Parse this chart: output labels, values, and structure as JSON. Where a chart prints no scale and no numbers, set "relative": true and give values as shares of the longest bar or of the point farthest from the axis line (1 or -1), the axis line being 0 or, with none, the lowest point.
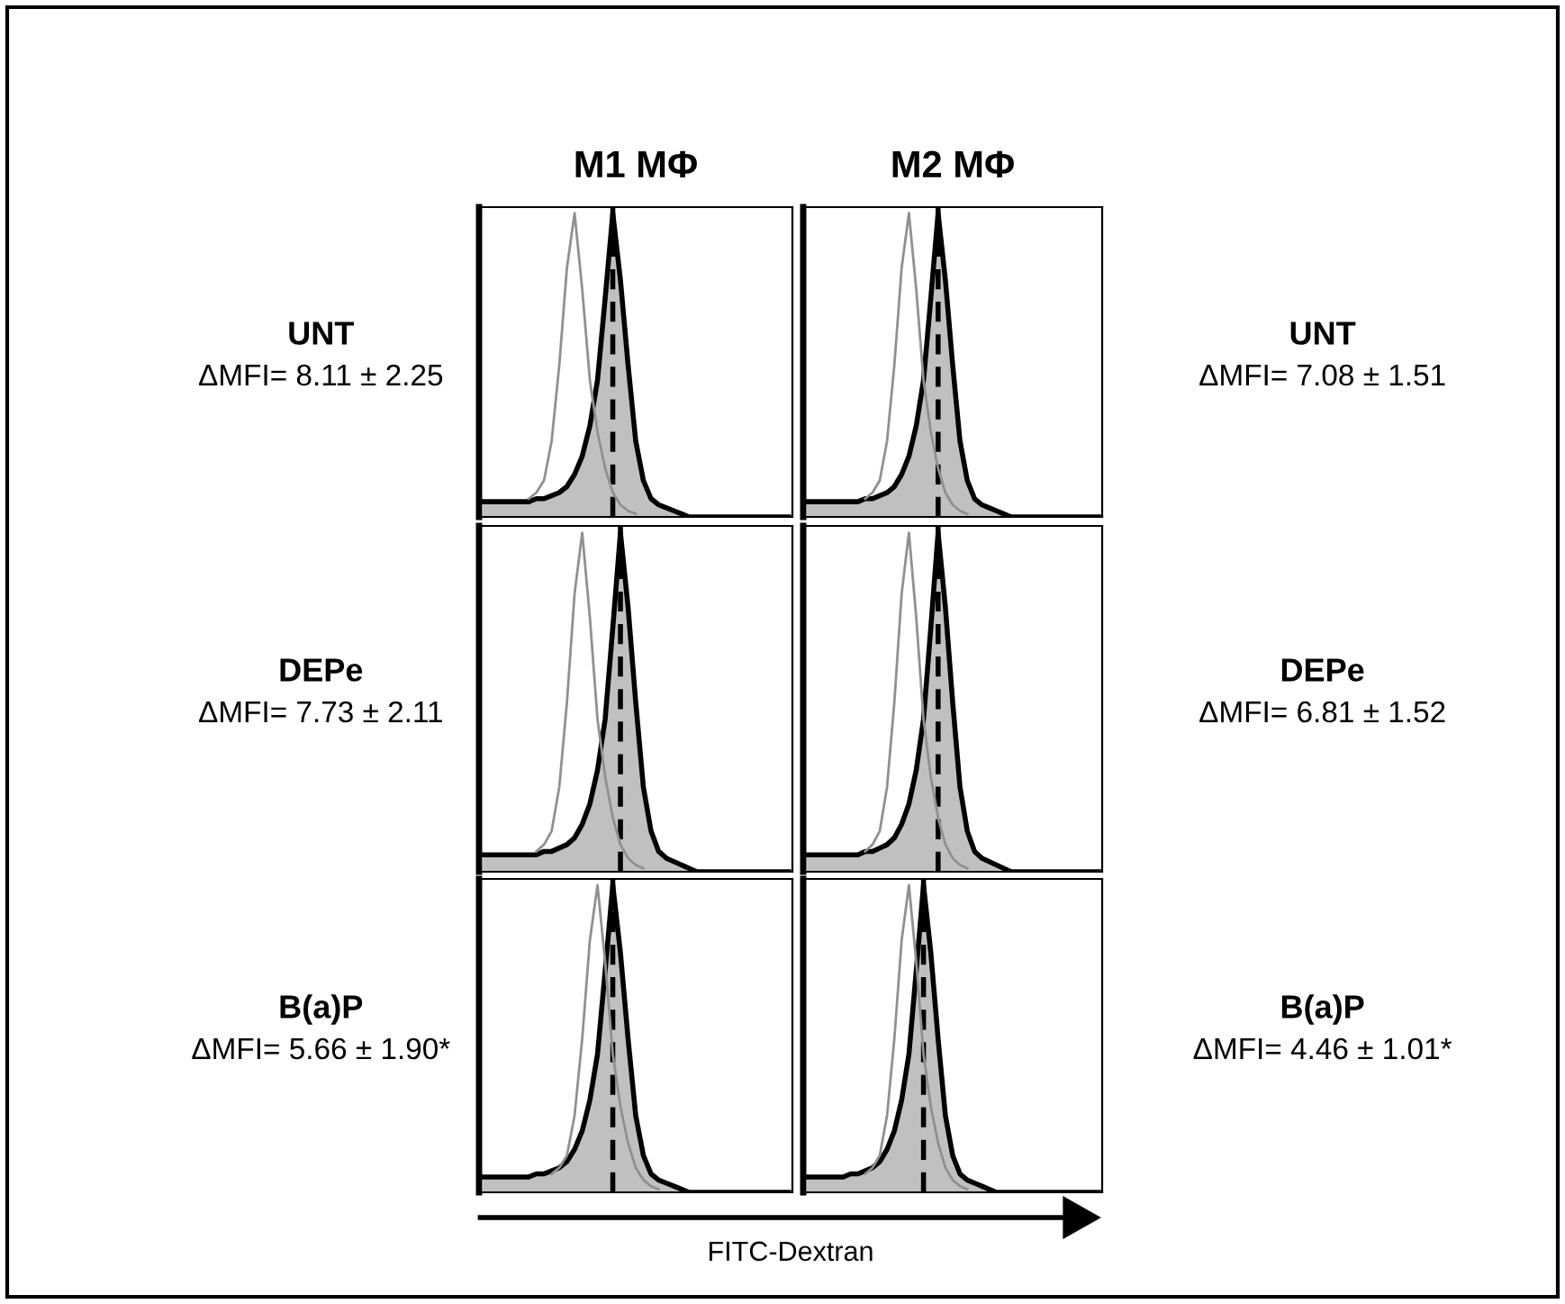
{
  "chart_data": [
    {
      "type": "area",
      "title": "M1 MΦ",
      "relative": true,
      "annotations": [
        "UNT",
        "ΔMFI= 8.11 ± 2.25"
      ],
      "categories": [
        null,
        null,
        null,
        null,
        null,
        null,
        null,
        null,
        null,
        null,
        null,
        null,
        null,
        null,
        null,
        null,
        null,
        null,
        null,
        null,
        null,
        null,
        null,
        null,
        null,
        null,
        null,
        null,
        null,
        null,
        null,
        null,
        null,
        null,
        null,
        null,
        null,
        null,
        null,
        null,
        null
      ],
      "series": [
        {
          "color": "#c0c0c0",
          "values": [
            0.05,
            0.05,
            0.05,
            0.05,
            0.05,
            0.05,
            0.05,
            0.06,
            0.06,
            0.07,
            0.08,
            0.1,
            0.14,
            0.2,
            0.3,
            0.45,
            0.72,
            1,
            0.78,
            0.5,
            0.25,
            0.12,
            0.06,
            0.04,
            0.03,
            0.02,
            0.01,
            0,
            0,
            0,
            0,
            0,
            0,
            0,
            0,
            0,
            0,
            0,
            0,
            0,
            0
          ]
        },
        {
          "type": "line",
          "color": "#909090",
          "values": [
            null,
            null,
            null,
            null,
            null,
            null,
            0.06,
            0.08,
            0.12,
            0.25,
            0.5,
            0.82,
            1,
            0.75,
            0.45,
            0.28,
            0.16,
            0.08,
            0.04,
            0.02,
            0.01,
            null,
            null,
            null,
            null,
            null,
            null,
            null,
            null,
            null,
            null,
            null,
            null,
            null,
            null,
            null,
            null,
            null,
            null,
            null,
            null
          ]
        }
      ]
    },
    {
      "type": "area",
      "title": "M2 MΦ",
      "relative": true,
      "annotations": [
        "UNT",
        "ΔMFI= 7.08 ± 1.51"
      ],
      "categories": [
        null,
        null,
        null,
        null,
        null,
        null,
        null,
        null,
        null,
        null,
        null,
        null,
        null,
        null,
        null,
        null,
        null,
        null,
        null,
        null,
        null,
        null,
        null,
        null,
        null,
        null,
        null,
        null,
        null,
        null,
        null,
        null,
        null,
        null,
        null,
        null,
        null,
        null,
        null,
        null,
        null
      ],
      "series": [
        {
          "color": "#c0c0c0",
          "values": [
            0.05,
            0.05,
            0.05,
            0.05,
            0.05,
            0.05,
            0.05,
            0.05,
            0.06,
            0.06,
            0.07,
            0.08,
            0.1,
            0.14,
            0.2,
            0.3,
            0.45,
            0.72,
            1,
            0.78,
            0.5,
            0.25,
            0.12,
            0.06,
            0.04,
            0.03,
            0.02,
            0.01,
            0,
            0,
            0,
            0,
            0,
            0,
            0,
            0,
            0,
            0,
            0,
            0,
            0
          ]
        },
        {
          "type": "line",
          "color": "#909090",
          "values": [
            null,
            null,
            null,
            null,
            null,
            null,
            null,
            null,
            0.06,
            0.08,
            0.12,
            0.25,
            0.5,
            0.82,
            1,
            0.75,
            0.45,
            0.28,
            0.16,
            0.08,
            0.04,
            0.02,
            0.01,
            null,
            null,
            null,
            null,
            null,
            null,
            null,
            null,
            null,
            null,
            null,
            null,
            null,
            null,
            null,
            null,
            null,
            null
          ]
        }
      ]
    },
    {
      "type": "area",
      "relative": true,
      "annotations": [
        "DEPe",
        "ΔMFI= 7.73 ± 2.11"
      ],
      "categories": [
        null,
        null,
        null,
        null,
        null,
        null,
        null,
        null,
        null,
        null,
        null,
        null,
        null,
        null,
        null,
        null,
        null,
        null,
        null,
        null,
        null,
        null,
        null,
        null,
        null,
        null,
        null,
        null,
        null,
        null,
        null,
        null,
        null,
        null,
        null,
        null,
        null,
        null,
        null,
        null,
        null
      ],
      "series": [
        {
          "color": "#c0c0c0",
          "values": [
            0.05,
            0.05,
            0.05,
            0.05,
            0.05,
            0.05,
            0.05,
            0.05,
            0.06,
            0.06,
            0.07,
            0.08,
            0.1,
            0.14,
            0.2,
            0.3,
            0.45,
            0.72,
            1,
            0.78,
            0.5,
            0.25,
            0.12,
            0.06,
            0.04,
            0.03,
            0.02,
            0.01,
            0,
            0,
            0,
            0,
            0,
            0,
            0,
            0,
            0,
            0,
            0,
            0,
            0
          ]
        },
        {
          "type": "line",
          "color": "#909090",
          "values": [
            null,
            null,
            null,
            null,
            null,
            null,
            null,
            0.06,
            0.08,
            0.12,
            0.25,
            0.5,
            0.82,
            1,
            0.75,
            0.45,
            0.28,
            0.16,
            0.08,
            0.04,
            0.02,
            0.01,
            null,
            null,
            null,
            null,
            null,
            null,
            null,
            null,
            null,
            null,
            null,
            null,
            null,
            null,
            null,
            null,
            null,
            null,
            null
          ]
        }
      ]
    },
    {
      "type": "area",
      "relative": true,
      "annotations": [
        "DEPe",
        "ΔMFI= 6.81 ± 1.52"
      ],
      "categories": [
        null,
        null,
        null,
        null,
        null,
        null,
        null,
        null,
        null,
        null,
        null,
        null,
        null,
        null,
        null,
        null,
        null,
        null,
        null,
        null,
        null,
        null,
        null,
        null,
        null,
        null,
        null,
        null,
        null,
        null,
        null,
        null,
        null,
        null,
        null,
        null,
        null,
        null,
        null,
        null,
        null
      ],
      "series": [
        {
          "color": "#c0c0c0",
          "values": [
            0.05,
            0.05,
            0.05,
            0.05,
            0.05,
            0.05,
            0.05,
            0.05,
            0.06,
            0.06,
            0.07,
            0.08,
            0.1,
            0.14,
            0.2,
            0.3,
            0.45,
            0.72,
            1,
            0.78,
            0.5,
            0.25,
            0.12,
            0.06,
            0.04,
            0.03,
            0.02,
            0.01,
            0,
            0,
            0,
            0,
            0,
            0,
            0,
            0,
            0,
            0,
            0,
            0,
            0
          ]
        },
        {
          "type": "line",
          "color": "#909090",
          "values": [
            null,
            null,
            null,
            null,
            null,
            null,
            null,
            null,
            0.06,
            0.08,
            0.12,
            0.25,
            0.5,
            0.82,
            1,
            0.75,
            0.45,
            0.28,
            0.16,
            0.08,
            0.04,
            0.02,
            0.01,
            null,
            null,
            null,
            null,
            null,
            null,
            null,
            null,
            null,
            null,
            null,
            null,
            null,
            null,
            null,
            null,
            null,
            null
          ]
        }
      ]
    },
    {
      "type": "area",
      "relative": true,
      "annotations": [
        "B(a)P",
        "ΔMFI= 5.66 ± 1.90*",
        "FITC-Dextran"
      ],
      "categories": [
        null,
        null,
        null,
        null,
        null,
        null,
        null,
        null,
        null,
        null,
        null,
        null,
        null,
        null,
        null,
        null,
        null,
        null,
        null,
        null,
        null,
        null,
        null,
        null,
        null,
        null,
        null,
        null,
        null,
        null,
        null,
        null,
        null,
        null,
        null,
        null,
        null,
        null,
        null,
        null,
        null
      ],
      "series": [
        {
          "color": "#c0c0c0",
          "values": [
            0.05,
            0.05,
            0.05,
            0.05,
            0.05,
            0.05,
            0.05,
            0.06,
            0.06,
            0.07,
            0.08,
            0.1,
            0.14,
            0.2,
            0.3,
            0.45,
            0.72,
            1,
            0.78,
            0.5,
            0.25,
            0.12,
            0.06,
            0.04,
            0.03,
            0.02,
            0.01,
            0,
            0,
            0,
            0,
            0,
            0,
            0,
            0,
            0,
            0,
            0,
            0,
            0,
            0
          ]
        },
        {
          "type": "line",
          "color": "#909090",
          "values": [
            null,
            null,
            null,
            null,
            null,
            null,
            null,
            null,
            null,
            0.06,
            0.08,
            0.12,
            0.25,
            0.5,
            0.82,
            1,
            0.75,
            0.45,
            0.28,
            0.16,
            0.08,
            0.04,
            0.02,
            0.01,
            null,
            null,
            null,
            null,
            null,
            null,
            null,
            null,
            null,
            null,
            null,
            null,
            null,
            null,
            null,
            null,
            null
          ]
        }
      ]
    },
    {
      "type": "area",
      "relative": true,
      "annotations": [
        "B(a)P",
        "ΔMFI= 4.46 ± 1.01*"
      ],
      "categories": [
        null,
        null,
        null,
        null,
        null,
        null,
        null,
        null,
        null,
        null,
        null,
        null,
        null,
        null,
        null,
        null,
        null,
        null,
        null,
        null,
        null,
        null,
        null,
        null,
        null,
        null,
        null,
        null,
        null,
        null,
        null,
        null,
        null,
        null,
        null,
        null,
        null,
        null,
        null,
        null,
        null
      ],
      "series": [
        {
          "color": "#c0c0c0",
          "values": [
            0.05,
            0.05,
            0.05,
            0.05,
            0.05,
            0.05,
            0.06,
            0.06,
            0.07,
            0.08,
            0.1,
            0.14,
            0.2,
            0.3,
            0.45,
            0.72,
            1,
            0.78,
            0.5,
            0.25,
            0.12,
            0.06,
            0.04,
            0.03,
            0.02,
            0.01,
            0,
            0,
            0,
            0,
            0,
            0,
            0,
            0,
            0,
            0,
            0,
            0,
            0,
            0,
            0
          ]
        },
        {
          "type": "line",
          "color": "#909090",
          "values": [
            null,
            null,
            null,
            null,
            null,
            null,
            null,
            null,
            0.06,
            0.08,
            0.12,
            0.25,
            0.5,
            0.82,
            1,
            0.75,
            0.45,
            0.28,
            0.16,
            0.08,
            0.04,
            0.02,
            0.01,
            null,
            null,
            null,
            null,
            null,
            null,
            null,
            null,
            null,
            null,
            null,
            null,
            null,
            null,
            null,
            null,
            null,
            null
          ]
        }
      ]
    }
  ]
}
